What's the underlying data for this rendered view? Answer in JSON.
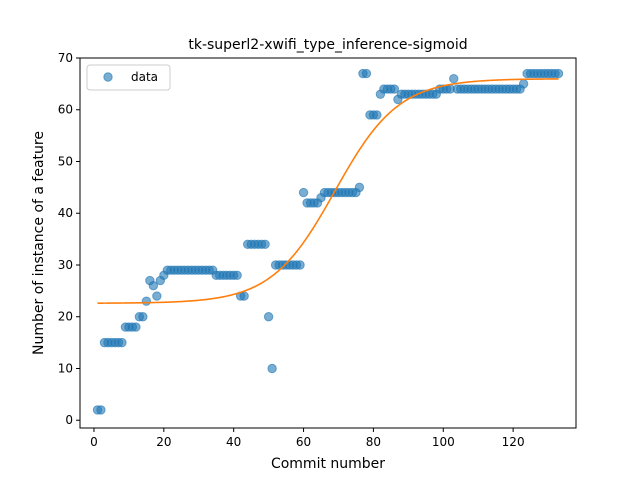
{
  "chart_data": {
    "type": "scatter",
    "title": "tk-superl2-xwifi_type_inference-sigmoid",
    "xlabel": "Commit number",
    "ylabel": "Number of instance of a feature",
    "xlim": [
      -4,
      138
    ],
    "ylim": [
      -1.5,
      70
    ],
    "xticks": [
      0,
      20,
      40,
      60,
      80,
      100,
      120
    ],
    "yticks": [
      0,
      10,
      20,
      30,
      40,
      50,
      60,
      70
    ],
    "grid": false,
    "legend_position": "top-left",
    "series": [
      {
        "name": "data",
        "kind": "scatter",
        "color": "#1f77b4",
        "x": [
          1,
          2,
          3,
          4,
          5,
          6,
          7,
          8,
          9,
          10,
          11,
          12,
          13,
          14,
          15,
          16,
          17,
          18,
          19,
          20,
          21,
          22,
          23,
          24,
          25,
          26,
          27,
          28,
          29,
          30,
          31,
          32,
          33,
          34,
          35,
          36,
          37,
          38,
          39,
          40,
          41,
          42,
          43,
          44,
          45,
          46,
          47,
          48,
          49,
          50,
          51,
          52,
          53,
          54,
          55,
          56,
          57,
          58,
          59,
          60,
          61,
          62,
          63,
          64,
          65,
          66,
          67,
          68,
          69,
          70,
          71,
          72,
          73,
          74,
          75,
          76,
          77,
          78,
          79,
          80,
          81,
          82,
          83,
          84,
          85,
          86,
          87,
          88,
          89,
          90,
          91,
          92,
          93,
          94,
          95,
          96,
          97,
          98,
          99,
          100,
          101,
          102,
          103,
          104,
          105,
          106,
          107,
          108,
          109,
          110,
          111,
          112,
          113,
          114,
          115,
          116,
          117,
          118,
          119,
          120,
          121,
          122,
          123,
          124,
          125,
          126,
          127,
          128,
          129,
          130,
          131,
          132,
          133
        ],
        "y": [
          2,
          2,
          15,
          15,
          15,
          15,
          15,
          15,
          18,
          18,
          18,
          18,
          20,
          20,
          23,
          27,
          26,
          24,
          27,
          28,
          29,
          29,
          29,
          29,
          29,
          29,
          29,
          29,
          29,
          29,
          29,
          29,
          29,
          29,
          28,
          28,
          28,
          28,
          28,
          28,
          28,
          24,
          24,
          34,
          34,
          34,
          34,
          34,
          34,
          20,
          10,
          30,
          30,
          30,
          30,
          30,
          30,
          30,
          30,
          44,
          42,
          42,
          42,
          42,
          43,
          44,
          44,
          44,
          44,
          44,
          44,
          44,
          44,
          44,
          44,
          45,
          67,
          67,
          59,
          59,
          59,
          63,
          64,
          64,
          64,
          64,
          62,
          63,
          63,
          63,
          63,
          63,
          63,
          63,
          63,
          63,
          63,
          63,
          64,
          64,
          64,
          64,
          66,
          64,
          64,
          64,
          64,
          64,
          64,
          64,
          64,
          64,
          64,
          64,
          64,
          64,
          64,
          64,
          64,
          64,
          64,
          64,
          65,
          67,
          67,
          67,
          67,
          67,
          67,
          67,
          67,
          67,
          67
        ]
      },
      {
        "name": "",
        "kind": "line",
        "color": "#ff7f0e",
        "model": "sigmoid",
        "params": {
          "lower": 22.6,
          "upper": 66.0,
          "midpoint": 69,
          "rate": 0.11
        },
        "x_range": [
          1,
          133
        ]
      }
    ]
  }
}
